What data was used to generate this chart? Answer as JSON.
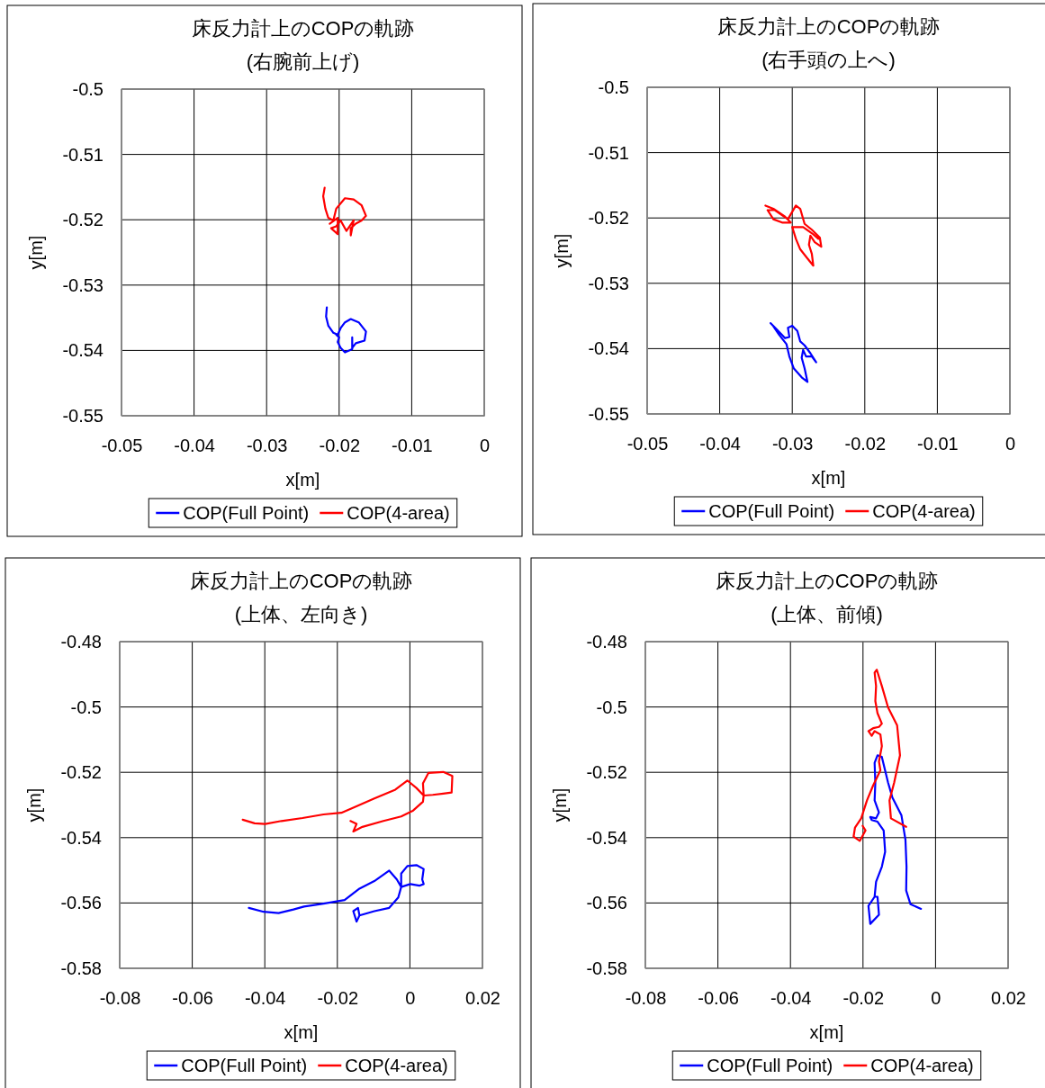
{
  "chart_data": [
    {
      "type": "line",
      "title": "床反力計上のCOPの軌跡",
      "subtitle": "(右腕前上げ)",
      "xlabel": "x[m]",
      "ylabel": "y[m]",
      "xlim": [
        -0.05,
        0
      ],
      "ylim": [
        -0.55,
        -0.5
      ],
      "xticks": [
        -0.05,
        -0.04,
        -0.03,
        -0.02,
        -0.01,
        0
      ],
      "yticks": [
        -0.5,
        -0.51,
        -0.52,
        -0.53,
        -0.54,
        -0.55
      ],
      "grid": true,
      "legend": "bottom",
      "series": [
        {
          "name": "COP(Full Point)",
          "color": "#0000ff",
          "x": [
            -0.0217,
            -0.0218,
            -0.0215,
            -0.0208,
            -0.0202,
            -0.0198,
            -0.0192,
            -0.0184,
            -0.0173,
            -0.0163,
            -0.0165,
            -0.0177,
            -0.0182,
            -0.0182,
            -0.0182,
            -0.0192,
            -0.0198,
            -0.0202,
            -0.02,
            -0.0204
          ],
          "values": [
            -0.5334,
            -0.5348,
            -0.5362,
            -0.5373,
            -0.5376,
            -0.5366,
            -0.5357,
            -0.5352,
            -0.5357,
            -0.5371,
            -0.5385,
            -0.5389,
            -0.5396,
            -0.538,
            -0.5398,
            -0.5403,
            -0.5396,
            -0.5387,
            -0.538,
            -0.5376
          ]
        },
        {
          "name": "COP(4-area)",
          "color": "#ff0000",
          "x": [
            -0.022,
            -0.0222,
            -0.0219,
            -0.0215,
            -0.0208,
            -0.0204,
            -0.0192,
            -0.018,
            -0.0169,
            -0.0163,
            -0.0169,
            -0.0177,
            -0.0184,
            -0.0184,
            -0.018,
            -0.019,
            -0.0198,
            -0.0204,
            -0.0211,
            -0.0202,
            -0.0202,
            -0.0213
          ],
          "values": [
            -0.5151,
            -0.5164,
            -0.5183,
            -0.5197,
            -0.5201,
            -0.5183,
            -0.5167,
            -0.5169,
            -0.5178,
            -0.5194,
            -0.5201,
            -0.5206,
            -0.5213,
            -0.5224,
            -0.5201,
            -0.5217,
            -0.5201,
            -0.521,
            -0.5213,
            -0.5222,
            -0.5197,
            -0.5206
          ]
        }
      ]
    },
    {
      "type": "line",
      "title": "床反力計上のCOPの軌跡",
      "subtitle": "(右手頭の上へ)",
      "xlabel": "x[m]",
      "ylabel": "y[m]",
      "xlim": [
        -0.05,
        0
      ],
      "ylim": [
        -0.55,
        -0.5
      ],
      "xticks": [
        -0.05,
        -0.04,
        -0.03,
        -0.02,
        -0.01,
        0
      ],
      "yticks": [
        -0.5,
        -0.51,
        -0.52,
        -0.53,
        -0.54,
        -0.55
      ],
      "grid": true,
      "legend": "bottom",
      "series": [
        {
          "name": "COP(Full Point)",
          "color": "#0000ff",
          "x": [
            -0.033,
            -0.0322,
            -0.0314,
            -0.031,
            -0.0304,
            -0.0306,
            -0.03,
            -0.0293,
            -0.0289,
            -0.0283,
            -0.0275,
            -0.0267,
            -0.0273,
            -0.0281,
            -0.0285,
            -0.0287,
            -0.0283,
            -0.0279,
            -0.0287,
            -0.0298,
            -0.0304,
            -0.0308,
            -0.0318,
            -0.0326
          ],
          "values": [
            -0.5361,
            -0.537,
            -0.5379,
            -0.5384,
            -0.5382,
            -0.5368,
            -0.5365,
            -0.5373,
            -0.5389,
            -0.5395,
            -0.5407,
            -0.5421,
            -0.5412,
            -0.5412,
            -0.5402,
            -0.5414,
            -0.543,
            -0.5451,
            -0.5444,
            -0.543,
            -0.5412,
            -0.5393,
            -0.5379,
            -0.5366
          ]
        },
        {
          "name": "COP(4-area)",
          "color": "#ff0000",
          "x": [
            -0.0337,
            -0.0326,
            -0.031,
            -0.0302,
            -0.0314,
            -0.0326,
            -0.0334,
            -0.0324,
            -0.0306,
            -0.0295,
            -0.0289,
            -0.0283,
            -0.0273,
            -0.0262,
            -0.026,
            -0.0269,
            -0.0275,
            -0.0277,
            -0.0273,
            -0.0271,
            -0.0279,
            -0.0289,
            -0.0295,
            -0.03,
            -0.0285,
            -0.0271,
            -0.0264
          ],
          "values": [
            -0.5181,
            -0.5186,
            -0.5198,
            -0.5207,
            -0.5207,
            -0.5202,
            -0.5188,
            -0.5188,
            -0.5202,
            -0.5181,
            -0.5186,
            -0.5209,
            -0.5218,
            -0.523,
            -0.5244,
            -0.5237,
            -0.5227,
            -0.5241,
            -0.5255,
            -0.5273,
            -0.5262,
            -0.5248,
            -0.5232,
            -0.5214,
            -0.5214,
            -0.5225,
            -0.5232
          ]
        }
      ]
    },
    {
      "type": "line",
      "title": "床反力計上のCOPの軌跡",
      "subtitle": "(上体、左向き)",
      "xlabel": "x[m]",
      "ylabel": "y[m]",
      "xlim": [
        -0.08,
        0.02
      ],
      "ylim": [
        -0.58,
        -0.48
      ],
      "xticks": [
        -0.08,
        -0.06,
        -0.04,
        -0.02,
        0,
        0.02
      ],
      "yticks": [
        -0.48,
        -0.5,
        -0.52,
        -0.54,
        -0.56,
        -0.58
      ],
      "grid": true,
      "legend": "bottom",
      "series": [
        {
          "name": "COP(Full Point)",
          "color": "#0000ff",
          "x": [
            -0.0444,
            -0.0403,
            -0.0362,
            -0.0321,
            -0.0292,
            -0.0238,
            -0.018,
            -0.0139,
            -0.0098,
            -0.0057,
            -0.0036,
            -0.0024,
            -0.0024,
            -0.0007,
            0.0018,
            0.0038,
            0.0034,
            0.0038,
            0.0026,
            0.0001,
            -0.0024,
            -0.0032,
            -0.0057,
            -0.0098,
            -0.0139,
            -0.0147,
            -0.0156,
            -0.0143,
            -0.0139
          ],
          "values": [
            -0.5615,
            -0.5627,
            -0.5631,
            -0.562,
            -0.5611,
            -0.5602,
            -0.5591,
            -0.5556,
            -0.5533,
            -0.5501,
            -0.5528,
            -0.5551,
            -0.551,
            -0.5487,
            -0.5484,
            -0.5496,
            -0.5528,
            -0.5542,
            -0.5547,
            -0.5542,
            -0.5551,
            -0.5583,
            -0.5615,
            -0.5625,
            -0.5638,
            -0.5657,
            -0.5625,
            -0.5615,
            -0.5638
          ]
        },
        {
          "name": "COP(4-area)",
          "color": "#ff0000",
          "x": [
            -0.0461,
            -0.0428,
            -0.0399,
            -0.0354,
            -0.0296,
            -0.0238,
            -0.0189,
            -0.0156,
            -0.0098,
            -0.004,
            -0.0007,
            0.0018,
            0.0038,
            0.0036,
            0.0051,
            0.0092,
            0.0117,
            0.0115,
            0.0092,
            0.0063,
            0.0038,
            0.0036,
            0.0009,
            -0.0024,
            -0.0073,
            -0.0131,
            -0.0156,
            -0.0147,
            -0.0164
          ],
          "values": [
            -0.5345,
            -0.5356,
            -0.5358,
            -0.5349,
            -0.534,
            -0.5329,
            -0.5324,
            -0.5308,
            -0.528,
            -0.5253,
            -0.5225,
            -0.5248,
            -0.5271,
            -0.5234,
            -0.5202,
            -0.5199,
            -0.5211,
            -0.5262,
            -0.5265,
            -0.5269,
            -0.5271,
            -0.529,
            -0.5317,
            -0.5335,
            -0.5349,
            -0.5367,
            -0.5381,
            -0.5358,
            -0.5349
          ]
        }
      ]
    },
    {
      "type": "line",
      "title": "床反力計上のCOPの軌跡",
      "subtitle": "(上体、前傾)",
      "xlabel": "x[m]",
      "ylabel": "y[m]",
      "xlim": [
        -0.08,
        0.02
      ],
      "ylim": [
        -0.58,
        -0.48
      ],
      "xticks": [
        -0.08,
        -0.06,
        -0.04,
        -0.02,
        0,
        0.02
      ],
      "yticks": [
        -0.48,
        -0.5,
        -0.52,
        -0.54,
        -0.56,
        -0.58
      ],
      "grid": true,
      "legend": "bottom",
      "series": [
        {
          "name": "COP(Full Point)",
          "color": "#0000ff",
          "x": [
            -0.004,
            -0.0069,
            -0.0081,
            -0.008,
            -0.0083,
            -0.0094,
            -0.0119,
            -0.0131,
            -0.0148,
            -0.016,
            -0.0168,
            -0.0166,
            -0.0168,
            -0.0156,
            -0.0164,
            -0.018,
            -0.0176,
            -0.016,
            -0.0143,
            -0.0139,
            -0.0148,
            -0.0164,
            -0.0168,
            -0.0185,
            -0.018,
            -0.0156,
            -0.016,
            -0.0168
          ],
          "values": [
            -0.5618,
            -0.5604,
            -0.5562,
            -0.5489,
            -0.5406,
            -0.5332,
            -0.5277,
            -0.5231,
            -0.5153,
            -0.5148,
            -0.5171,
            -0.5231,
            -0.5286,
            -0.5323,
            -0.5341,
            -0.5337,
            -0.5346,
            -0.5351,
            -0.5378,
            -0.5443,
            -0.5489,
            -0.5535,
            -0.5581,
            -0.5609,
            -0.5664,
            -0.5636,
            -0.5581,
            -0.5581
          ]
        },
        {
          "name": "COP(4-area)",
          "color": "#ff0000",
          "x": [
            -0.0081,
            -0.0123,
            -0.0127,
            -0.0114,
            -0.0098,
            -0.0106,
            -0.0131,
            -0.0148,
            -0.0162,
            -0.0168,
            -0.0164,
            -0.0166,
            -0.016,
            -0.0148,
            -0.0156,
            -0.0172,
            -0.0185,
            -0.0176,
            -0.0168,
            -0.0152,
            -0.0148,
            -0.0156,
            -0.0152,
            -0.0172,
            -0.0189,
            -0.0205,
            -0.0222,
            -0.0226,
            -0.0209,
            -0.0193,
            -0.0201
          ],
          "values": [
            -0.5367,
            -0.5341,
            -0.5286,
            -0.5231,
            -0.5148,
            -0.5056,
            -0.5001,
            -0.4936,
            -0.4886,
            -0.4895,
            -0.4936,
            -0.4982,
            -0.5019,
            -0.5051,
            -0.5061,
            -0.5065,
            -0.5074,
            -0.5088,
            -0.5074,
            -0.5084,
            -0.512,
            -0.5167,
            -0.5194,
            -0.524,
            -0.5286,
            -0.5341,
            -0.5369,
            -0.5397,
            -0.541,
            -0.5378,
            -0.5364
          ]
        }
      ]
    }
  ]
}
